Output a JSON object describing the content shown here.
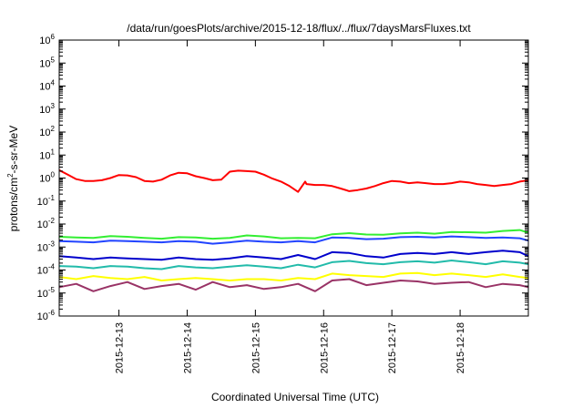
{
  "chart_data": {
    "type": "line",
    "title": "/data/run/goesPlots/archive/2015-12-18/flux/../flux/7daysMarsFluxes.txt",
    "xlabel": "Coordinated Universal Time (UTC)",
    "ylabel": {
      "base": "protons/cm",
      "sup": "2",
      "rest": "-s-sr-MeV"
    },
    "yscale": "log",
    "ylim": [
      -6,
      6
    ],
    "yticks": [
      {
        "exp": -6,
        "label_base": "10",
        "label_exp": "-6"
      },
      {
        "exp": -5,
        "label_base": "10",
        "label_exp": "-5"
      },
      {
        "exp": -4,
        "label_base": "10",
        "label_exp": "-4"
      },
      {
        "exp": -3,
        "label_base": "10",
        "label_exp": "-3"
      },
      {
        "exp": -2,
        "label_base": "10",
        "label_exp": "-2"
      },
      {
        "exp": -1,
        "label_base": "10",
        "label_exp": "-1"
      },
      {
        "exp": 0,
        "label_base": "10",
        "label_exp": "0"
      },
      {
        "exp": 1,
        "label_base": "10",
        "label_exp": "1"
      },
      {
        "exp": 2,
        "label_base": "10",
        "label_exp": "2"
      },
      {
        "exp": 3,
        "label_base": "10",
        "label_exp": "3"
      },
      {
        "exp": 4,
        "label_base": "10",
        "label_exp": "4"
      },
      {
        "exp": 5,
        "label_base": "10",
        "label_exp": "5"
      },
      {
        "exp": 6,
        "label_base": "10",
        "label_exp": "6"
      }
    ],
    "xlim": [
      "2015-12-12T03:00",
      "2015-12-19T00:00"
    ],
    "xticks": [
      {
        "date": "2015-12-13T00:00",
        "label": "2015-12-13"
      },
      {
        "date": "2015-12-14T00:00",
        "label": "2015-12-14"
      },
      {
        "date": "2015-12-15T00:00",
        "label": "2015-12-15"
      },
      {
        "date": "2015-12-16T00:00",
        "label": "2015-12-16"
      },
      {
        "date": "2015-12-17T00:00",
        "label": "2015-12-17"
      },
      {
        "date": "2015-12-18T00:00",
        "label": "2015-12-18"
      }
    ],
    "grid": false,
    "series": [
      {
        "color": "#ff0000",
        "x": [
          "2015-12-12T03:00",
          "2015-12-12T06:00",
          "2015-12-12T09:00",
          "2015-12-12T12:00",
          "2015-12-12T15:00",
          "2015-12-12T18:00",
          "2015-12-12T21:00",
          "2015-12-13T00:00",
          "2015-12-13T03:00",
          "2015-12-13T06:00",
          "2015-12-13T09:00",
          "2015-12-13T12:00",
          "2015-12-13T15:00",
          "2015-12-13T18:00",
          "2015-12-13T21:00",
          "2015-12-14T00:00",
          "2015-12-14T03:00",
          "2015-12-14T06:00",
          "2015-12-14T09:00",
          "2015-12-14T12:00",
          "2015-12-14T15:00",
          "2015-12-14T18:00",
          "2015-12-14T21:00",
          "2015-12-15T00:00",
          "2015-12-15T03:00",
          "2015-12-15T06:00",
          "2015-12-15T09:00",
          "2015-12-15T12:00",
          "2015-12-15T15:00",
          "2015-12-15T17:30",
          "2015-12-15T18:00",
          "2015-12-15T21:00",
          "2015-12-16T00:00",
          "2015-12-16T03:00",
          "2015-12-16T06:00",
          "2015-12-16T09:00",
          "2015-12-16T12:00",
          "2015-12-16T15:00",
          "2015-12-16T18:00",
          "2015-12-16T21:00",
          "2015-12-17T00:00",
          "2015-12-17T03:00",
          "2015-12-17T06:00",
          "2015-12-17T09:00",
          "2015-12-17T12:00",
          "2015-12-17T15:00",
          "2015-12-17T18:00",
          "2015-12-17T21:00",
          "2015-12-18T00:00",
          "2015-12-18T03:00",
          "2015-12-18T06:00",
          "2015-12-18T09:00",
          "2015-12-18T12:00",
          "2015-12-18T15:00",
          "2015-12-18T18:00",
          "2015-12-18T21:00",
          "2015-12-19T00:00"
        ],
        "y": [
          2.2,
          1.4,
          0.9,
          0.75,
          0.75,
          0.8,
          1.0,
          1.35,
          1.3,
          1.1,
          0.75,
          0.7,
          0.85,
          1.3,
          1.7,
          1.6,
          1.2,
          1.0,
          0.8,
          0.85,
          1.9,
          2.1,
          2.0,
          1.9,
          1.4,
          0.95,
          0.7,
          0.45,
          0.25,
          0.7,
          0.55,
          0.5,
          0.5,
          0.45,
          0.35,
          0.27,
          0.3,
          0.35,
          0.45,
          0.6,
          0.75,
          0.7,
          0.6,
          0.65,
          0.6,
          0.55,
          0.55,
          0.6,
          0.7,
          0.65,
          0.55,
          0.5,
          0.45,
          0.5,
          0.55,
          0.7,
          0.8
        ]
      },
      {
        "color": "#33ee33",
        "x": [
          "2015-12-12T03:00",
          "2015-12-12T09:00",
          "2015-12-12T15:00",
          "2015-12-12T21:00",
          "2015-12-13T03:00",
          "2015-12-13T09:00",
          "2015-12-13T15:00",
          "2015-12-13T21:00",
          "2015-12-14T03:00",
          "2015-12-14T09:00",
          "2015-12-14T15:00",
          "2015-12-14T21:00",
          "2015-12-15T03:00",
          "2015-12-15T09:00",
          "2015-12-15T15:00",
          "2015-12-15T21:00",
          "2015-12-16T03:00",
          "2015-12-16T09:00",
          "2015-12-16T15:00",
          "2015-12-16T21:00",
          "2015-12-17T03:00",
          "2015-12-17T09:00",
          "2015-12-17T15:00",
          "2015-12-17T21:00",
          "2015-12-18T03:00",
          "2015-12-18T09:00",
          "2015-12-18T15:00",
          "2015-12-18T21:00",
          "2015-12-19T00:00"
        ],
        "y": [
          0.0028,
          0.0026,
          0.0025,
          0.003,
          0.0028,
          0.0025,
          0.0023,
          0.0027,
          0.0026,
          0.0023,
          0.0025,
          0.0032,
          0.0029,
          0.0024,
          0.0025,
          0.0024,
          0.0036,
          0.004,
          0.0035,
          0.0034,
          0.0039,
          0.0042,
          0.0038,
          0.0045,
          0.0044,
          0.0042,
          0.005,
          0.0055,
          0.0042
        ]
      },
      {
        "color": "#2244ff",
        "x": [
          "2015-12-12T03:00",
          "2015-12-12T09:00",
          "2015-12-12T15:00",
          "2015-12-12T21:00",
          "2015-12-13T03:00",
          "2015-12-13T09:00",
          "2015-12-13T15:00",
          "2015-12-13T21:00",
          "2015-12-14T03:00",
          "2015-12-14T09:00",
          "2015-12-14T15:00",
          "2015-12-14T21:00",
          "2015-12-15T03:00",
          "2015-12-15T09:00",
          "2015-12-15T15:00",
          "2015-12-15T21:00",
          "2015-12-16T03:00",
          "2015-12-16T09:00",
          "2015-12-16T15:00",
          "2015-12-16T21:00",
          "2015-12-17T03:00",
          "2015-12-17T09:00",
          "2015-12-17T15:00",
          "2015-12-17T21:00",
          "2015-12-18T03:00",
          "2015-12-18T09:00",
          "2015-12-18T15:00",
          "2015-12-18T21:00",
          "2015-12-19T00:00"
        ],
        "y": [
          0.0018,
          0.0017,
          0.0016,
          0.0019,
          0.0018,
          0.0017,
          0.0016,
          0.0018,
          0.0017,
          0.0014,
          0.0016,
          0.0019,
          0.0017,
          0.0016,
          0.0018,
          0.0016,
          0.0026,
          0.0025,
          0.0022,
          0.0023,
          0.0027,
          0.0028,
          0.0026,
          0.0029,
          0.0027,
          0.0025,
          0.0026,
          0.0024,
          0.0019
        ]
      },
      {
        "color": "#0000cc",
        "x": [
          "2015-12-12T03:00",
          "2015-12-12T09:00",
          "2015-12-12T15:00",
          "2015-12-12T21:00",
          "2015-12-13T03:00",
          "2015-12-13T09:00",
          "2015-12-13T15:00",
          "2015-12-13T21:00",
          "2015-12-14T03:00",
          "2015-12-14T09:00",
          "2015-12-14T15:00",
          "2015-12-14T21:00",
          "2015-12-15T03:00",
          "2015-12-15T09:00",
          "2015-12-15T15:00",
          "2015-12-15T21:00",
          "2015-12-16T03:00",
          "2015-12-16T09:00",
          "2015-12-16T15:00",
          "2015-12-16T21:00",
          "2015-12-17T03:00",
          "2015-12-17T09:00",
          "2015-12-17T15:00",
          "2015-12-17T21:00",
          "2015-12-18T03:00",
          "2015-12-18T09:00",
          "2015-12-18T15:00",
          "2015-12-18T21:00",
          "2015-12-19T00:00"
        ],
        "y": [
          0.0004,
          0.00035,
          0.0003,
          0.00035,
          0.00032,
          0.0003,
          0.00028,
          0.00035,
          0.0003,
          0.00028,
          0.00032,
          0.0004,
          0.00035,
          0.0003,
          0.00045,
          0.0003,
          0.0006,
          0.00055,
          0.0004,
          0.00035,
          0.0005,
          0.00055,
          0.0005,
          0.0006,
          0.0005,
          0.0006,
          0.0007,
          0.0006,
          0.0004
        ]
      },
      {
        "color": "#22bbaa",
        "x": [
          "2015-12-12T03:00",
          "2015-12-12T09:00",
          "2015-12-12T15:00",
          "2015-12-12T21:00",
          "2015-12-13T03:00",
          "2015-12-13T09:00",
          "2015-12-13T15:00",
          "2015-12-13T21:00",
          "2015-12-14T03:00",
          "2015-12-14T09:00",
          "2015-12-14T15:00",
          "2015-12-14T21:00",
          "2015-12-15T03:00",
          "2015-12-15T09:00",
          "2015-12-15T15:00",
          "2015-12-15T21:00",
          "2015-12-16T03:00",
          "2015-12-16T09:00",
          "2015-12-16T15:00",
          "2015-12-16T21:00",
          "2015-12-17T03:00",
          "2015-12-17T09:00",
          "2015-12-17T15:00",
          "2015-12-17T21:00",
          "2015-12-18T03:00",
          "2015-12-18T09:00",
          "2015-12-18T15:00",
          "2015-12-18T21:00",
          "2015-12-19T00:00"
        ],
        "y": [
          0.00015,
          0.00014,
          0.00012,
          0.00015,
          0.00014,
          0.00012,
          0.00011,
          0.00015,
          0.00013,
          0.00012,
          0.00014,
          0.00016,
          0.00014,
          0.00012,
          0.00017,
          0.00013,
          0.00022,
          0.00025,
          0.0002,
          0.00018,
          0.00022,
          0.00024,
          0.00021,
          0.00026,
          0.00022,
          0.00018,
          0.00024,
          0.00021,
          0.00018
        ]
      },
      {
        "color": "#ffff00",
        "x": [
          "2015-12-12T03:00",
          "2015-12-12T09:00",
          "2015-12-12T15:00",
          "2015-12-12T21:00",
          "2015-12-13T03:00",
          "2015-12-13T09:00",
          "2015-12-13T15:00",
          "2015-12-13T21:00",
          "2015-12-14T03:00",
          "2015-12-14T09:00",
          "2015-12-14T15:00",
          "2015-12-14T21:00",
          "2015-12-15T03:00",
          "2015-12-15T09:00",
          "2015-12-15T15:00",
          "2015-12-15T21:00",
          "2015-12-16T03:00",
          "2015-12-16T09:00",
          "2015-12-16T15:00",
          "2015-12-16T21:00",
          "2015-12-17T03:00",
          "2015-12-17T09:00",
          "2015-12-17T15:00",
          "2015-12-17T21:00",
          "2015-12-18T03:00",
          "2015-12-18T09:00",
          "2015-12-18T15:00",
          "2015-12-18T21:00",
          "2015-12-19T00:00"
        ],
        "y": [
          5e-05,
          4e-05,
          5.5e-05,
          4.5e-05,
          4e-05,
          5e-05,
          3.5e-05,
          4e-05,
          4.5e-05,
          4e-05,
          3.5e-05,
          4e-05,
          4e-05,
          3.5e-05,
          4.5e-05,
          4e-05,
          7e-05,
          6e-05,
          5.5e-05,
          5e-05,
          7e-05,
          7.5e-05,
          6e-05,
          7e-05,
          6e-05,
          5e-05,
          6.5e-05,
          5e-05,
          4.5e-05
        ]
      },
      {
        "color": "#993366",
        "x": [
          "2015-12-12T03:00",
          "2015-12-12T09:00",
          "2015-12-12T15:00",
          "2015-12-12T21:00",
          "2015-12-13T03:00",
          "2015-12-13T09:00",
          "2015-12-13T15:00",
          "2015-12-13T21:00",
          "2015-12-14T03:00",
          "2015-12-14T09:00",
          "2015-12-14T15:00",
          "2015-12-14T21:00",
          "2015-12-15T03:00",
          "2015-12-15T09:00",
          "2015-12-15T15:00",
          "2015-12-15T21:00",
          "2015-12-16T03:00",
          "2015-12-16T09:00",
          "2015-12-16T15:00",
          "2015-12-16T21:00",
          "2015-12-17T03:00",
          "2015-12-17T09:00",
          "2015-12-17T15:00",
          "2015-12-17T21:00",
          "2015-12-18T03:00",
          "2015-12-18T09:00",
          "2015-12-18T15:00",
          "2015-12-18T21:00",
          "2015-12-19T00:00"
        ],
        "y": [
          1.8e-05,
          2.5e-05,
          1.2e-05,
          2e-05,
          3e-05,
          1.5e-05,
          2e-05,
          2.5e-05,
          1.4e-05,
          3e-05,
          1.8e-05,
          2.2e-05,
          1.5e-05,
          1.8e-05,
          2.5e-05,
          1.2e-05,
          3.5e-05,
          4e-05,
          2.2e-05,
          2.8e-05,
          3.5e-05,
          3.2e-05,
          2.5e-05,
          2.8e-05,
          3e-05,
          1.8e-05,
          2.5e-05,
          2.2e-05,
          1.8e-05
        ]
      }
    ]
  }
}
